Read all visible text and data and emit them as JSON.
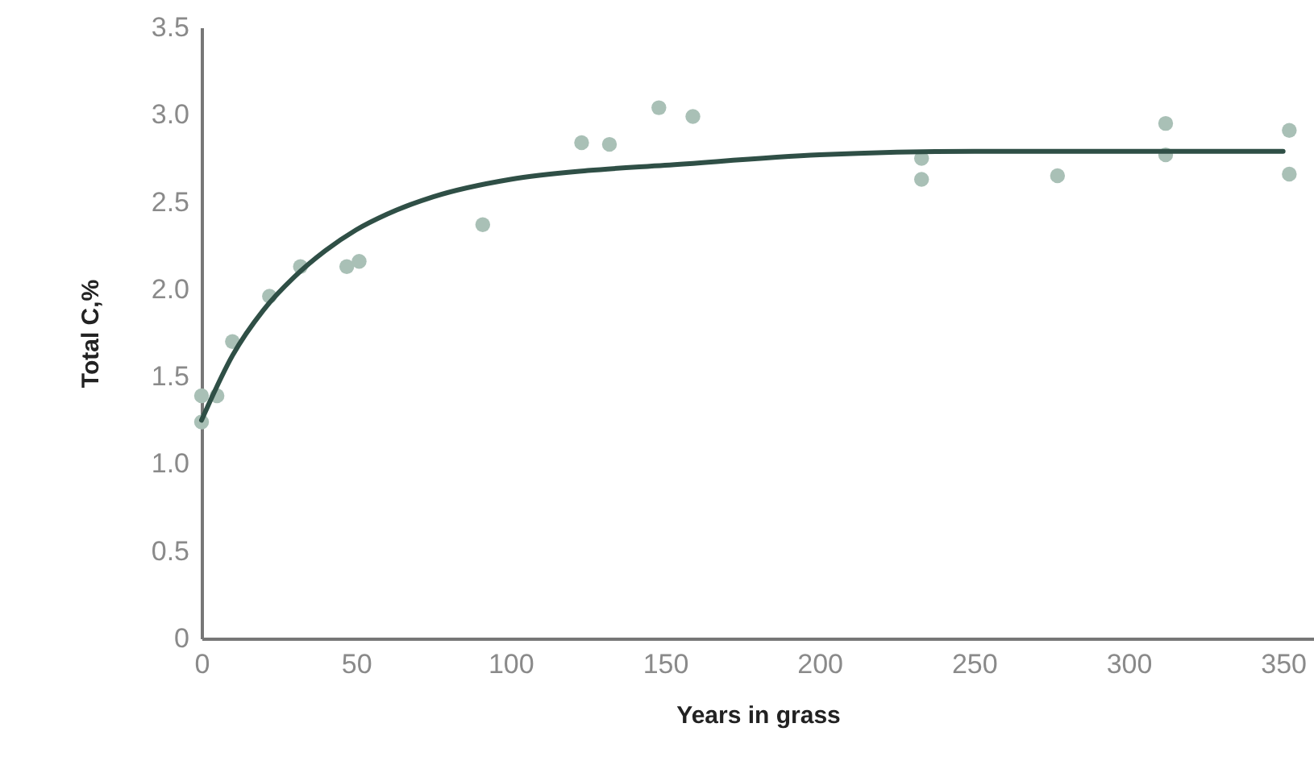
{
  "chart_data": {
    "type": "scatter",
    "xlabel": "Years in grass",
    "ylabel": "Total C,%",
    "xlim": [
      0,
      360
    ],
    "xticks": [
      0,
      50,
      100,
      150,
      200,
      250,
      300,
      350
    ],
    "ylim": [
      0,
      3.5
    ],
    "yticks": [
      0,
      {
        "value": 0.5,
        "label": "0.5"
      },
      {
        "value": 1,
        "label": "1.0"
      },
      {
        "value": 1.5,
        "label": "1.5"
      },
      {
        "value": 2,
        "label": "2.0"
      },
      {
        "value": 2.5,
        "label": "2.5"
      },
      {
        "value": 3,
        "label": "3.0"
      },
      {
        "value": 3.5,
        "label": "3.5"
      }
    ],
    "grid": false,
    "marker": "circle",
    "series": [
      {
        "color": "#a9c0b6",
        "x": [
          0,
          0,
          5,
          10,
          22,
          32,
          47,
          51,
          91,
          123,
          132,
          148,
          159,
          233,
          233,
          277,
          312,
          312,
          352,
          352
        ],
        "values": [
          1.39,
          1.24,
          1.39,
          1.7,
          1.96,
          2.13,
          2.13,
          2.16,
          2.37,
          2.84,
          2.83,
          3.04,
          2.99,
          2.75,
          2.63,
          2.65,
          2.95,
          2.77,
          2.91,
          2.66
        ]
      },
      {
        "type": "line",
        "color": "#2f4f46",
        "line_style": "solid",
        "marker": "none",
        "x": [
          0,
          10,
          20,
          30,
          40,
          50,
          60,
          75,
          100,
          125,
          150,
          200,
          250,
          300,
          350
        ],
        "values": [
          1.25,
          1.62,
          1.88,
          2.07,
          2.22,
          2.34,
          2.43,
          2.53,
          2.63,
          2.68,
          2.71,
          2.77,
          2.79,
          2.79,
          2.79
        ]
      }
    ]
  }
}
